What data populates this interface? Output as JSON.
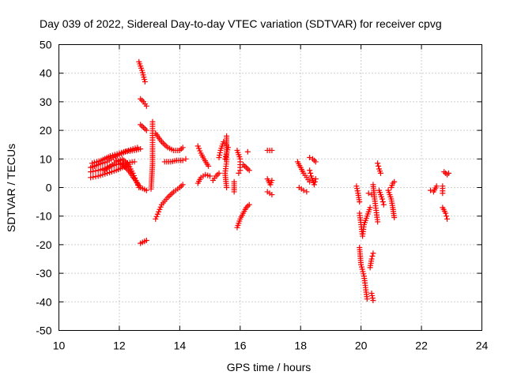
{
  "chart_data": {
    "type": "scatter",
    "title": "Day 039 of 2022, Sidereal Day-to-day VTEC variation (SDTVAR) for receiver cpvg",
    "xlabel": "GPS time / hours",
    "ylabel": "SDTVAR / TECUs",
    "xlim": [
      10,
      24
    ],
    "ylim": [
      -50,
      50
    ],
    "xticks": [
      "10",
      "12",
      "14",
      "16",
      "18",
      "20",
      "22",
      "24"
    ],
    "yticks": [
      "50",
      "40",
      "30",
      "20",
      "10",
      "0",
      "-10",
      "-20",
      "-30",
      "-40",
      "-50"
    ],
    "grid": true,
    "marker": "+",
    "series": [
      {
        "name": "SDTVAR",
        "color": "#ff0000",
        "segments": [
          [
            [
              11.05,
              3.5
            ],
            [
              11.3,
              4.0
            ],
            [
              11.6,
              5.0
            ],
            [
              11.9,
              6.0
            ],
            [
              12.1,
              7.0
            ],
            [
              12.3,
              7.5
            ]
          ],
          [
            [
              11.05,
              5.5
            ],
            [
              11.3,
              6.0
            ],
            [
              11.6,
              7.0
            ],
            [
              11.9,
              8.0
            ],
            [
              12.2,
              8.5
            ],
            [
              12.5,
              9.0
            ]
          ],
          [
            [
              11.05,
              7.0
            ],
            [
              11.3,
              8.0
            ],
            [
              11.6,
              9.0
            ],
            [
              11.8,
              10.5
            ],
            [
              12.0,
              11.5
            ],
            [
              12.2,
              12.5
            ],
            [
              12.5,
              13.0
            ],
            [
              12.7,
              13.5
            ]
          ],
          [
            [
              11.1,
              8.5
            ],
            [
              11.4,
              9.5
            ],
            [
              11.7,
              11.0
            ],
            [
              12.0,
              12.0
            ],
            [
              12.3,
              13.0
            ],
            [
              12.6,
              14.0
            ]
          ],
          [
            [
              11.5,
              6.0
            ],
            [
              11.7,
              7.5
            ],
            [
              11.9,
              9.0
            ],
            [
              12.1,
              10.0
            ],
            [
              12.3,
              8.0
            ],
            [
              12.45,
              5.0
            ],
            [
              12.55,
              2.5
            ],
            [
              12.65,
              0.0
            ]
          ],
          [
            [
              11.9,
              9.5
            ],
            [
              12.1,
              8.0
            ],
            [
              12.3,
              6.0
            ],
            [
              12.5,
              3.0
            ],
            [
              12.7,
              0.0
            ],
            [
              12.9,
              -1.0
            ]
          ],
          [
            [
              12.65,
              44.0
            ],
            [
              12.75,
              41.0
            ],
            [
              12.85,
              37.0
            ]
          ],
          [
            [
              12.7,
              31.0
            ],
            [
              12.8,
              30.0
            ],
            [
              12.9,
              28.5
            ]
          ],
          [
            [
              12.7,
              22.0
            ],
            [
              12.8,
              21.0
            ],
            [
              12.9,
              20.0
            ]
          ],
          [
            [
              12.7,
              -19.5
            ],
            [
              12.9,
              -18.5
            ]
          ],
          [
            [
              13.1,
              23.0
            ],
            [
              13.1,
              19.0
            ],
            [
              13.1,
              15.0
            ],
            [
              13.1,
              12.0
            ],
            [
              13.1,
              8.5
            ],
            [
              13.05,
              -0.5
            ]
          ],
          [
            [
              13.2,
              19.0
            ],
            [
              13.4,
              16.0
            ],
            [
              13.6,
              14.0
            ],
            [
              13.8,
              13.0
            ],
            [
              14.0,
              13.0
            ],
            [
              14.1,
              14.0
            ]
          ],
          [
            [
              13.2,
              -11.0
            ],
            [
              13.3,
              -8.5
            ],
            [
              13.4,
              -6.0
            ],
            [
              13.6,
              -3.5
            ],
            [
              13.8,
              -1.5
            ],
            [
              14.0,
              0.0
            ],
            [
              14.1,
              1.0
            ]
          ],
          [
            [
              13.5,
              9.0
            ],
            [
              13.7,
              9.0
            ],
            [
              13.9,
              9.5
            ],
            [
              14.1,
              9.5
            ],
            [
              14.2,
              10.0
            ]
          ],
          [
            [
              14.6,
              14.5
            ],
            [
              14.7,
              12.0
            ],
            [
              14.8,
              10.0
            ],
            [
              14.95,
              7.5
            ]
          ],
          [
            [
              14.6,
              1.5
            ],
            [
              14.7,
              3.5
            ],
            [
              14.85,
              4.5
            ],
            [
              15.0,
              4.0
            ]
          ],
          [
            [
              15.1,
              2.5
            ],
            [
              15.2,
              4.0
            ],
            [
              15.3,
              5.0
            ]
          ],
          [
            [
              15.3,
              10.5
            ],
            [
              15.35,
              13.0
            ],
            [
              15.45,
              16.0
            ],
            [
              15.6,
              14.0
            ],
            [
              15.5,
              10.0
            ]
          ],
          [
            [
              15.55,
              18.0
            ],
            [
              15.55,
              9.0
            ],
            [
              15.5,
              5.0
            ],
            [
              15.55,
              0.0
            ]
          ],
          [
            [
              15.9,
              -14.0
            ],
            [
              16.0,
              -11.0
            ],
            [
              16.1,
              -9.0
            ],
            [
              16.2,
              -7.0
            ],
            [
              16.3,
              -6.0
            ]
          ],
          [
            [
              15.8,
              2.0
            ],
            [
              15.8,
              -1.5
            ]
          ],
          [
            [
              15.9,
              13.0
            ],
            [
              16.0,
              10.0
            ],
            [
              16.0,
              8.0
            ],
            [
              16.0,
              6.0
            ],
            [
              15.95,
              5.0
            ]
          ],
          [
            [
              16.1,
              8.0
            ],
            [
              16.2,
              7.0
            ],
            [
              16.3,
              6.0
            ]
          ],
          [
            [
              16.25,
              12.5
            ]
          ],
          [
            [
              16.9,
              13.0
            ],
            [
              17.05,
              13.0
            ]
          ],
          [
            [
              16.9,
              3.0
            ],
            [
              17.0,
              1.0
            ],
            [
              17.05,
              2.5
            ]
          ],
          [
            [
              16.9,
              -1.5
            ],
            [
              17.05,
              -2.5
            ]
          ],
          [
            [
              17.9,
              9.0
            ],
            [
              18.0,
              7.0
            ],
            [
              18.1,
              5.0
            ],
            [
              18.2,
              3.5
            ],
            [
              18.3,
              2.0
            ]
          ],
          [
            [
              17.95,
              0.0
            ],
            [
              18.1,
              -1.0
            ],
            [
              18.2,
              -1.5
            ]
          ],
          [
            [
              18.3,
              10.5
            ],
            [
              18.4,
              10.0
            ],
            [
              18.5,
              9.0
            ]
          ],
          [
            [
              18.3,
              6.0
            ],
            [
              18.35,
              4.0
            ],
            [
              18.45,
              1.0
            ],
            [
              18.5,
              3.0
            ]
          ],
          [
            [
              19.85,
              0.5
            ],
            [
              19.9,
              -2.0
            ],
            [
              19.95,
              -5.0
            ]
          ],
          [
            [
              19.95,
              -9.0
            ],
            [
              20.0,
              -13.0
            ],
            [
              20.05,
              -17.0
            ],
            [
              20.1,
              -13.0
            ],
            [
              20.2,
              -10.0
            ],
            [
              20.3,
              -7.0
            ]
          ],
          [
            [
              19.95,
              -21.0
            ],
            [
              20.0,
              -27.0
            ],
            [
              20.1,
              -31.0
            ],
            [
              20.15,
              -35.0
            ],
            [
              20.2,
              -39.0
            ]
          ],
          [
            [
              20.3,
              -28.0
            ],
            [
              20.35,
              -25.0
            ],
            [
              20.4,
              -23.0
            ]
          ],
          [
            [
              20.35,
              -37.0
            ],
            [
              20.4,
              -39.5
            ]
          ],
          [
            [
              20.25,
              -2.0
            ],
            [
              20.35,
              -2.5
            ]
          ],
          [
            [
              20.4,
              1.0
            ],
            [
              20.45,
              -4.0
            ],
            [
              20.5,
              -8.0
            ],
            [
              20.55,
              -12.0
            ]
          ],
          [
            [
              20.55,
              8.5
            ],
            [
              20.6,
              6.5
            ],
            [
              20.65,
              5.0
            ]
          ],
          [
            [
              20.6,
              -1.0
            ],
            [
              20.7,
              -4.0
            ],
            [
              20.75,
              -6.0
            ]
          ],
          [
            [
              20.9,
              -1.0
            ],
            [
              21.0,
              -4.0
            ],
            [
              21.05,
              -7.0
            ],
            [
              21.1,
              -10.5
            ]
          ],
          [
            [
              21.0,
              0.0
            ],
            [
              21.05,
              1.5
            ],
            [
              21.1,
              2.0
            ]
          ],
          [
            [
              22.3,
              -1.0
            ],
            [
              22.4,
              -1.5
            ],
            [
              22.5,
              0.5
            ]
          ],
          [
            [
              22.7,
              -2.0
            ],
            [
              22.7,
              0.5
            ]
          ],
          [
            [
              22.7,
              -7.0
            ],
            [
              22.8,
              -9.0
            ],
            [
              22.85,
              -11.0
            ]
          ],
          [
            [
              22.75,
              5.5
            ],
            [
              22.85,
              4.5
            ],
            [
              22.9,
              5.0
            ]
          ]
        ]
      }
    ]
  }
}
